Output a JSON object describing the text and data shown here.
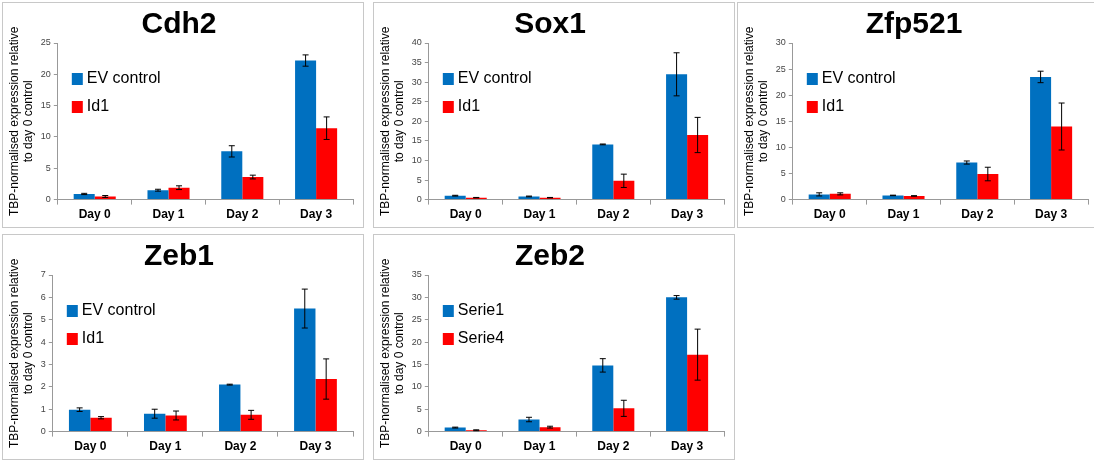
{
  "chart_data": [
    {
      "type": "bar",
      "title": "Cdh2",
      "ylabel": "TBP-normalised expression relative to day 0 control",
      "categories": [
        "Day 0",
        "Day 1",
        "Day 2",
        "Day 3"
      ],
      "legend": "top left",
      "ylim": [
        0,
        25
      ],
      "yticks": [
        0,
        5,
        10,
        15,
        20,
        25
      ],
      "series": [
        {
          "name": "EV control",
          "color": "#0070c0",
          "values": [
            0.9,
            1.5,
            7.7,
            22.2
          ],
          "errors": [
            0.1,
            0.15,
            0.9,
            0.9
          ]
        },
        {
          "name": "Id1",
          "color": "#ff0000",
          "values": [
            0.5,
            1.9,
            3.6,
            11.4
          ],
          "errors": [
            0.15,
            0.3,
            0.3,
            1.8
          ]
        }
      ]
    },
    {
      "type": "bar",
      "title": "Sox1",
      "ylabel": "TBP-normalised expression relative to day 0 control",
      "categories": [
        "Day 0",
        "Day 1",
        "Day 2",
        "Day 3"
      ],
      "legend": "top left",
      "ylim": [
        0,
        40
      ],
      "yticks": [
        0,
        5,
        10,
        15,
        20,
        25,
        30,
        35,
        40
      ],
      "series": [
        {
          "name": "EV control",
          "color": "#0070c0",
          "values": [
            1.0,
            0.8,
            14.1,
            32
          ],
          "errors": [
            0.1,
            0.1,
            0.1,
            5.5
          ]
        },
        {
          "name": "Id1",
          "color": "#ff0000",
          "values": [
            0.5,
            0.5,
            4.8,
            16.5
          ],
          "errors": [
            0.05,
            0.05,
            1.7,
            4.5
          ]
        }
      ]
    },
    {
      "type": "bar",
      "title": "Zfp521",
      "ylabel": "TBP-normalised expression relative to day 0 control",
      "categories": [
        "Day 0",
        "Day 1",
        "Day 2",
        "Day 3"
      ],
      "legend": "top left",
      "ylim": [
        0,
        30
      ],
      "yticks": [
        0,
        5,
        10,
        15,
        20,
        25,
        30
      ],
      "series": [
        {
          "name": "EV control",
          "color": "#0070c0",
          "values": [
            1.0,
            0.8,
            7.1,
            23.5
          ],
          "errors": [
            0.3,
            0.05,
            0.3,
            1.1
          ]
        },
        {
          "name": "Id1",
          "color": "#ff0000",
          "values": [
            1.1,
            0.7,
            4.9,
            14
          ],
          "errors": [
            0.2,
            0.05,
            1.3,
            4.5
          ]
        }
      ]
    },
    {
      "type": "bar",
      "title": "Zeb1",
      "ylabel": "TBP-normalised expression relative to day 0 control",
      "categories": [
        "Day 0",
        "Day 1",
        "Day 2",
        "Day 3"
      ],
      "legend": "top left",
      "ylim": [
        0,
        7
      ],
      "yticks": [
        0,
        1,
        2,
        3,
        4,
        5,
        6,
        7
      ],
      "series": [
        {
          "name": "EV control",
          "color": "#0070c0",
          "values": [
            0.98,
            0.8,
            2.1,
            5.5
          ],
          "errors": [
            0.08,
            0.2,
            0.02,
            0.87
          ]
        },
        {
          "name": "Id1",
          "color": "#ff0000",
          "values": [
            0.62,
            0.72,
            0.75,
            2.35
          ],
          "errors": [
            0.05,
            0.2,
            0.2,
            0.9
          ]
        }
      ]
    },
    {
      "type": "bar",
      "title": "Zeb2",
      "ylabel": "TBP-normalised expression relative to day 0 control",
      "categories": [
        "Day 0",
        "Day 1",
        "Day 2",
        "Day 3"
      ],
      "legend": "top left",
      "ylim": [
        0,
        35
      ],
      "yticks": [
        0,
        5,
        10,
        15,
        20,
        25,
        30,
        35
      ],
      "series": [
        {
          "name": "Serie1",
          "color": "#0070c0",
          "values": [
            0.9,
            2.7,
            14.8,
            30
          ],
          "errors": [
            0.1,
            0.5,
            1.5,
            0.4
          ]
        },
        {
          "name": "Serie4",
          "color": "#ff0000",
          "values": [
            0.3,
            1.0,
            5.2,
            17.2
          ],
          "errors": [
            0.1,
            0.2,
            1.8,
            5.7
          ]
        }
      ]
    }
  ]
}
